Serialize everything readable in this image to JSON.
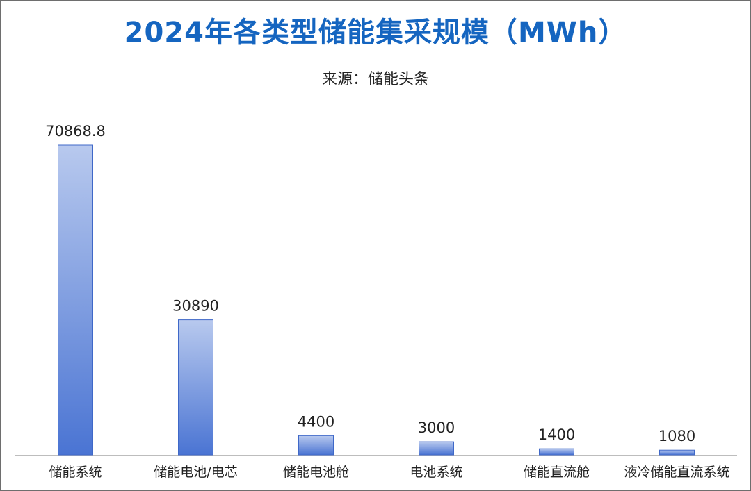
{
  "chart_data": {
    "type": "bar",
    "title": "2024年各类型储能集采规模（MWh）",
    "subtitle": "来源：储能头条",
    "categories": [
      "储能系统",
      "储能电池/电芯",
      "储能电池舱",
      "电池系统",
      "储能直流舱",
      "液冷储能直流系统"
    ],
    "values": [
      70868.8,
      30890,
      4400,
      3000,
      1400,
      1080
    ],
    "value_labels": [
      "70868.8",
      "30890",
      "4400",
      "3000",
      "1400",
      "1080"
    ],
    "ylim": [
      0,
      80000
    ],
    "grid": false,
    "legend": "none",
    "colors": {
      "bar_top": "#b8c9ee",
      "bar_bottom": "#4a74d3",
      "bar_stroke": "#3f68c8",
      "title": "#1565c0",
      "axis": "#bdbdbd"
    }
  }
}
